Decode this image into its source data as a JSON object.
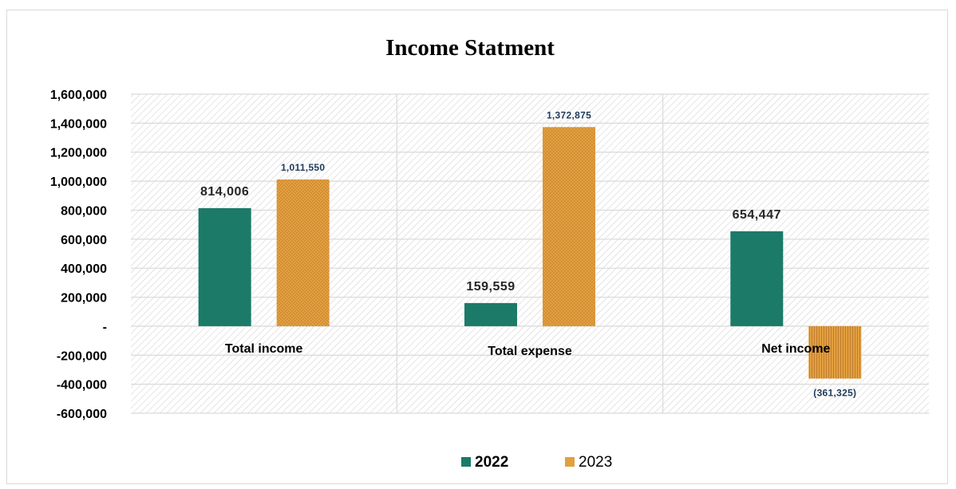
{
  "chart_data": {
    "type": "bar",
    "title": "Income Statment",
    "categories": [
      "Total income",
      "Total expense",
      "Net income"
    ],
    "series": [
      {
        "name": "2022",
        "values": [
          814006,
          159559,
          654447
        ],
        "labels": [
          "814,006",
          "159,559",
          "654,447"
        ],
        "color": "#1b7a68"
      },
      {
        "name": "2023",
        "values": [
          1011550,
          1372875,
          -361325
        ],
        "labels": [
          "1,011,550",
          "1,372,875",
          "(361,325)"
        ],
        "color": "#e3a03f"
      }
    ],
    "ylim": [
      -600000,
      1600000
    ],
    "y_ticks": [
      1600000,
      1400000,
      1200000,
      1000000,
      800000,
      600000,
      400000,
      200000,
      0,
      -200000,
      -400000,
      -600000
    ],
    "y_tick_labels": [
      "1,600,000",
      "1,400,000",
      "1,200,000",
      "1,000,000",
      "800,000",
      "600,000",
      "400,000",
      "200,000",
      "-",
      "-200,000",
      "-400,000",
      "-600,000"
    ],
    "grid": true,
    "legend_position": "bottom"
  }
}
